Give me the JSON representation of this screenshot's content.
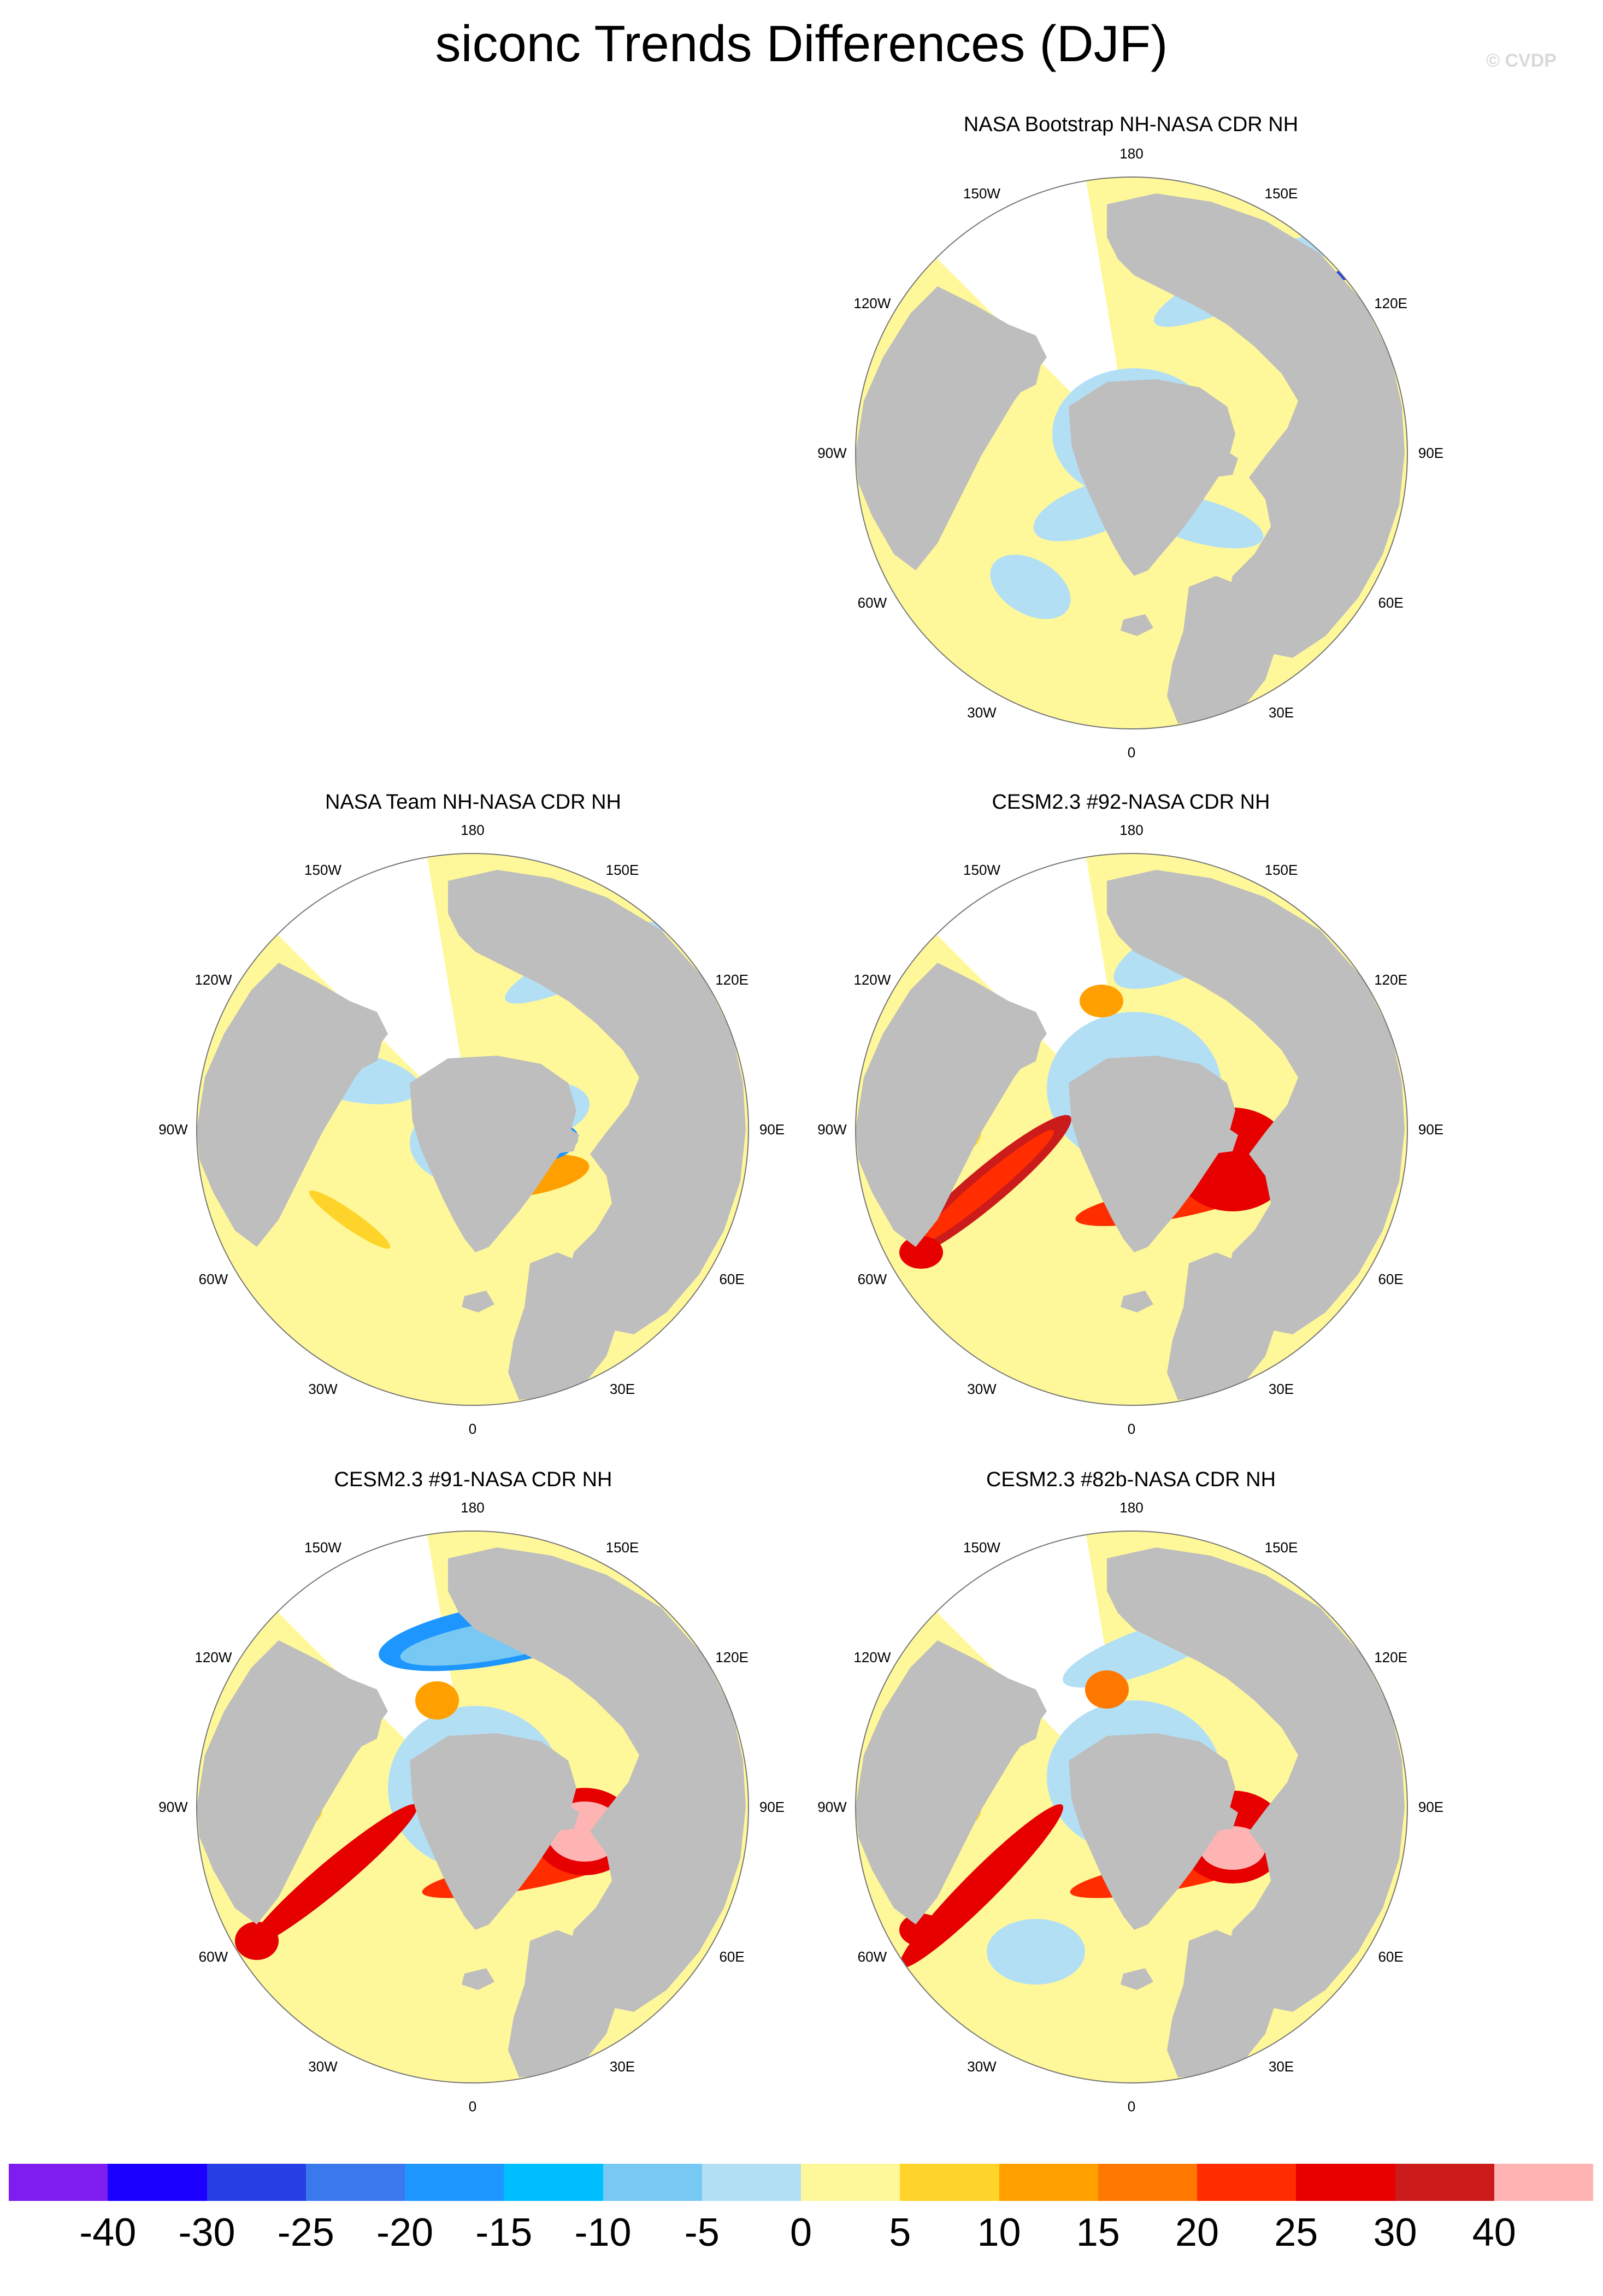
{
  "title": "siconc Trends Differences (DJF)",
  "watermark": "© CVDP",
  "panels": [
    {
      "title": "NASA Bootstrap NH-NASA CDR NH"
    },
    {
      "title": "NASA Team NH-NASA CDR NH"
    },
    {
      "title": "CESM2.3 #92-NASA CDR NH"
    },
    {
      "title": "CESM2.3 #91-NASA CDR NH"
    },
    {
      "title": "CESM2.3 #82b-NASA CDR NH"
    }
  ],
  "lon_labels": [
    "180",
    "150E",
    "120E",
    "90E",
    "60E",
    "30E",
    "0",
    "30W",
    "60W",
    "90W",
    "120W",
    "150W"
  ],
  "colorbar": {
    "colors": [
      "#7f1df0",
      "#1c00ff",
      "#2640e6",
      "#3a78ee",
      "#1e96ff",
      "#00bfff",
      "#78c8f4",
      "#b3dff5",
      "#fff89a",
      "#ffd42a",
      "#ffa000",
      "#ff7800",
      "#ff2d00",
      "#e60000",
      "#cc1b1b",
      "#ffb4b4"
    ],
    "labels": [
      "-40",
      "-30",
      "-25",
      "-20",
      "-15",
      "-10",
      "-5",
      "0",
      "5",
      "10",
      "15",
      "20",
      "25",
      "30",
      "40"
    ]
  },
  "colors": {
    "land": "#bebebe",
    "outline": "#777777",
    "neutral_pos": "#fff89a",
    "neutral_neg": "#b3dff5"
  }
}
